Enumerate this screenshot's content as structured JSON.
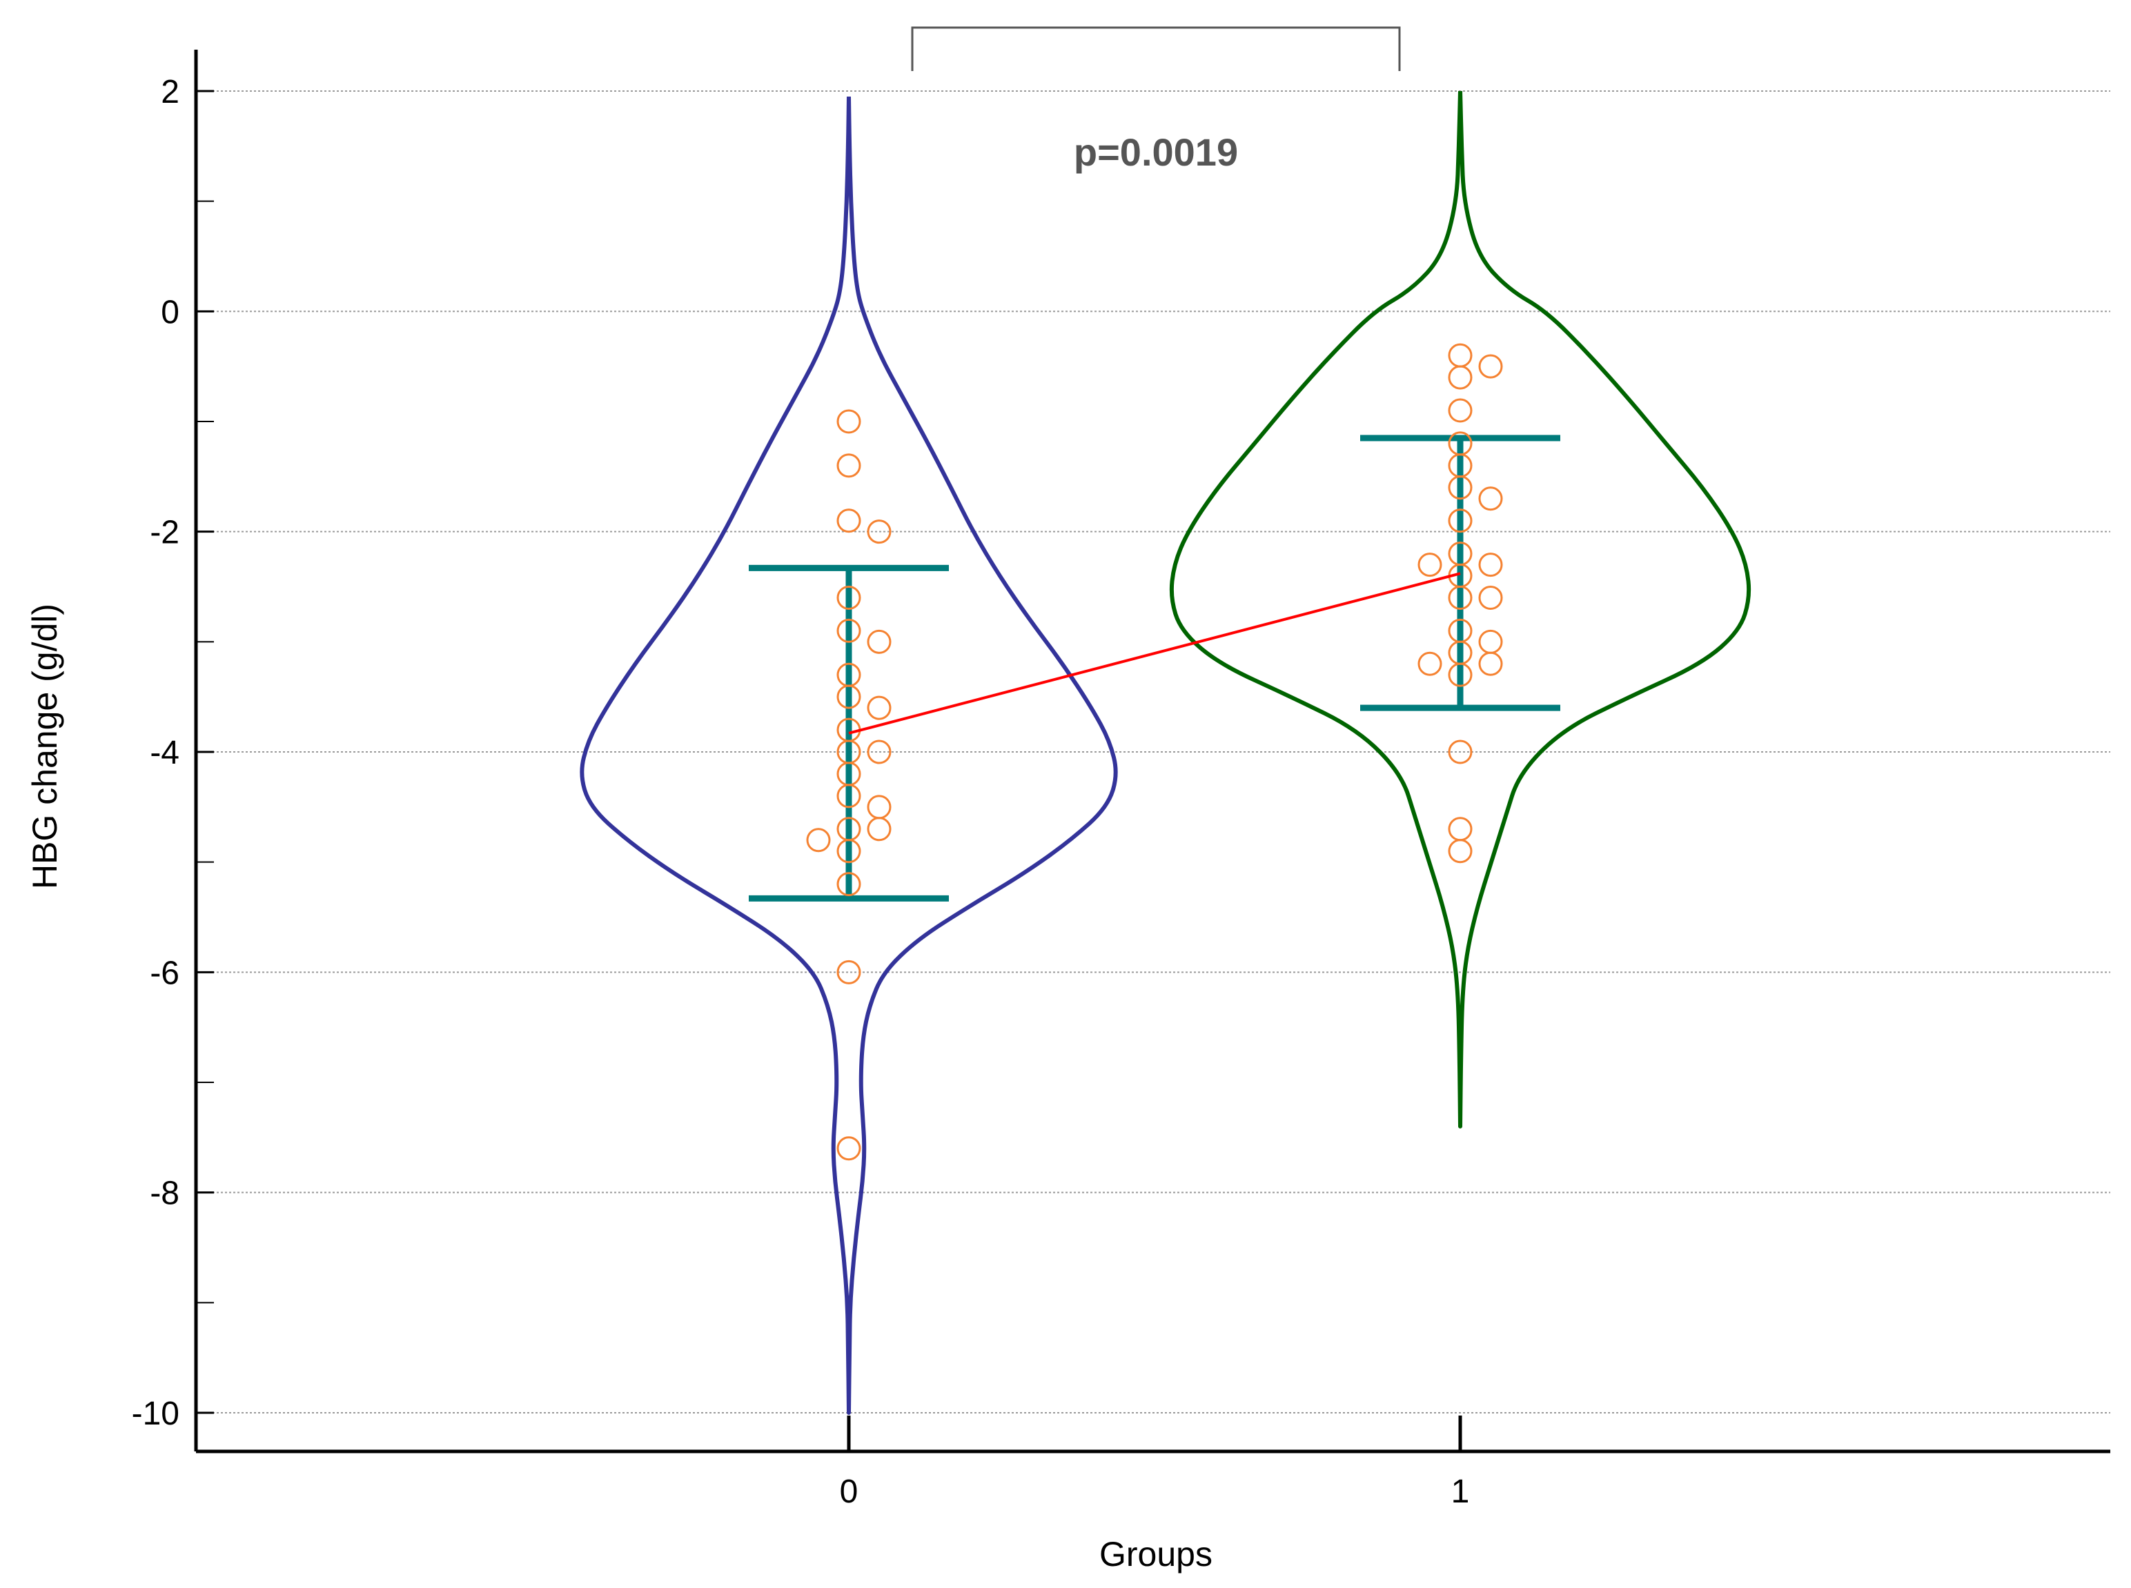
{
  "chart_data": {
    "type": "violin",
    "xlabel": "Groups",
    "ylabel": "HBG change (g/dl)",
    "ylim": [
      -10,
      2
    ],
    "yticks": [
      2,
      0,
      -2,
      -4,
      -6,
      -8,
      -10
    ],
    "grid": true,
    "categories": [
      "0",
      "1"
    ],
    "annotation": "p=0.0019",
    "colors": {
      "group_0_outline": "#33339a",
      "group_1_outline": "#006400",
      "points": "#f58231",
      "error_bars": "#007b7b",
      "mean_line": "#ff0000",
      "grid": "#999999"
    },
    "series": [
      {
        "category": "0",
        "mean": -3.83,
        "error_bar": [
          -5.33,
          -2.33
        ],
        "points": [
          -1.0,
          -1.4,
          -1.9,
          -2.0,
          -2.6,
          -2.9,
          -3.0,
          -3.3,
          -3.5,
          -3.6,
          -3.8,
          -4.0,
          -4.0,
          -4.2,
          -4.4,
          -4.5,
          -4.7,
          -4.7,
          -4.8,
          -4.9,
          -5.2,
          -6.0,
          -7.6
        ],
        "violin_range": [
          -10,
          1.95
        ]
      },
      {
        "category": "1",
        "mean": -2.38,
        "error_bar": [
          -3.6,
          -1.15
        ],
        "points": [
          -0.4,
          -0.5,
          -0.6,
          -0.9,
          -1.2,
          -1.4,
          -1.6,
          -1.7,
          -1.9,
          -2.2,
          -2.3,
          -2.3,
          -2.4,
          -2.6,
          -2.6,
          -2.9,
          -3.0,
          -3.1,
          -3.2,
          -3.2,
          -3.3,
          -4.0,
          -4.7,
          -4.9
        ],
        "violin_range": [
          -7.4,
          2.0
        ]
      }
    ]
  }
}
